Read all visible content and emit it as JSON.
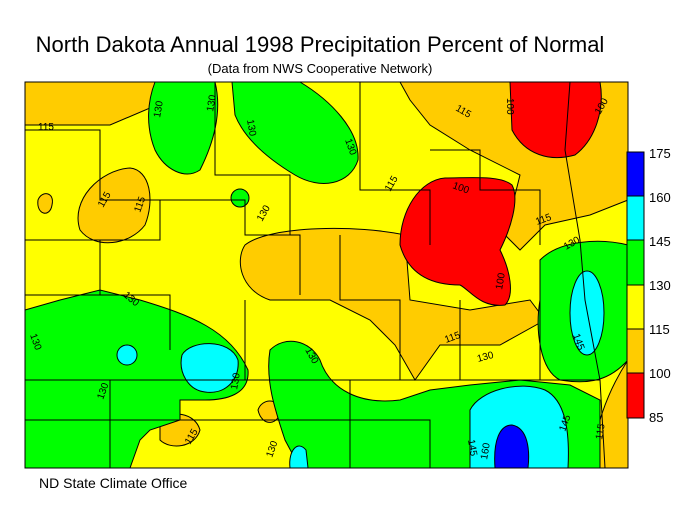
{
  "title": "North Dakota Annual 1998 Precipitation Percent of Normal",
  "subtitle": "(Data from NWS Cooperative Network)",
  "credit": "ND State Climate Office",
  "legend": {
    "ticks": [
      "175",
      "160",
      "145",
      "130",
      "115",
      "100",
      "85"
    ],
    "bins": [
      {
        "range": "160-175",
        "color": "#0000ff"
      },
      {
        "range": "145-160",
        "color": "#00ffff"
      },
      {
        "range": "130-145",
        "color": "#00ff00"
      },
      {
        "range": "115-130",
        "color": "#ffff00"
      },
      {
        "range": "100-115",
        "color": "#ffcc00"
      },
      {
        "range": "85-100",
        "color": "#ff0000"
      }
    ]
  },
  "contour_labels": [
    "115",
    "130",
    "130",
    "130",
    "100",
    "100",
    "115",
    "115",
    "130",
    "115",
    "100",
    "115",
    "130",
    "100",
    "130",
    "115",
    "130",
    "145",
    "130",
    "130",
    "130",
    "115",
    "130",
    "130",
    "145",
    "160",
    "145",
    "130",
    "115",
    "115"
  ]
}
